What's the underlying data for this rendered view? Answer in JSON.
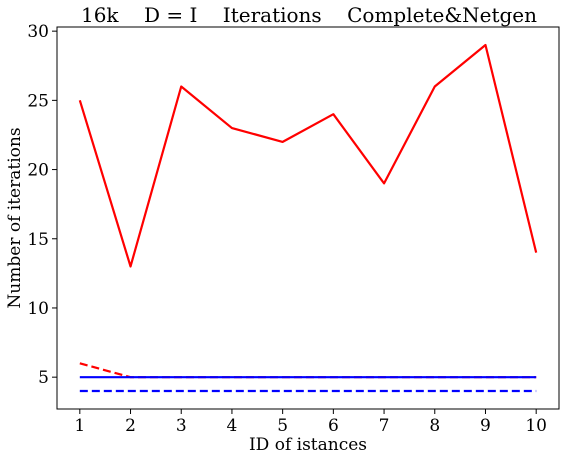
{
  "chart_data": {
    "type": "line",
    "title": "16k    D = I    Iterations    Complete&Netgen",
    "xlabel": "ID of istances",
    "ylabel": "Number of iterations",
    "x": [
      1,
      2,
      3,
      4,
      5,
      6,
      7,
      8,
      9,
      10
    ],
    "xlim": [
      0.55,
      10.45
    ],
    "ylim": [
      2.7,
      30.3
    ],
    "xticks": [
      "1",
      "2",
      "3",
      "4",
      "5",
      "6",
      "7",
      "8",
      "9",
      "10"
    ],
    "yticks": [
      5,
      10,
      15,
      20,
      25,
      30
    ],
    "ytick_labels": [
      "5",
      "10",
      "15",
      "20",
      "25",
      "30"
    ],
    "grid": false,
    "legend": false,
    "series": [
      {
        "values": [
          6,
          5,
          5,
          5,
          5,
          5,
          5,
          5,
          5,
          5
        ],
        "color": "#ff0000",
        "style": "dashed"
      },
      {
        "values": [
          25,
          13,
          26,
          23,
          22,
          24,
          19,
          26,
          29,
          14
        ],
        "color": "#ff0000",
        "style": "solid"
      },
      {
        "values": [
          4,
          4,
          4,
          4,
          4,
          4,
          4,
          4,
          4,
          4
        ],
        "color": "#0000ff",
        "style": "dashed"
      },
      {
        "values": [
          5,
          5,
          5,
          5,
          5,
          5,
          5,
          5,
          5,
          5
        ],
        "color": "#0000ff",
        "style": "solid"
      }
    ]
  }
}
